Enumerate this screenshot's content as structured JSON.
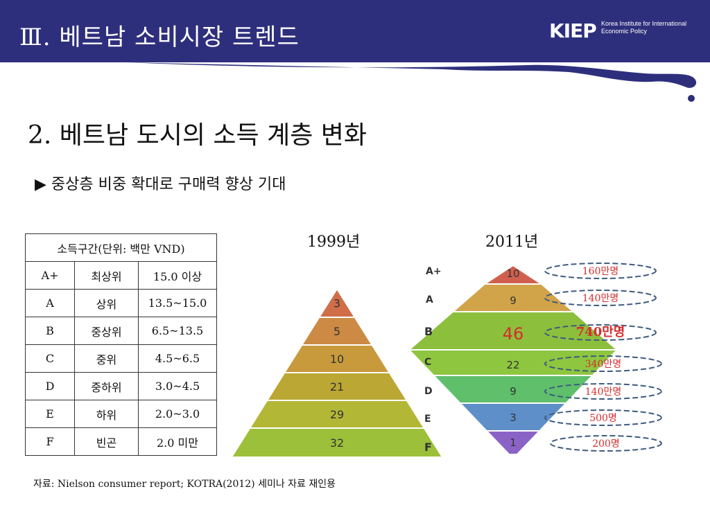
{
  "header": {
    "title": "Ⅲ.  베트남 소비시장 트렌드",
    "logo_mark": "KIEP",
    "logo_line1": "Korea Institute for International",
    "logo_line2": "Economic Policy"
  },
  "section_title": "2. 베트남 도시의 소득 계층 변화",
  "bullet": "▶ 중상층 비중 확대로 구매력 향상 기대",
  "table": {
    "header": "소득구간(단위: 백만 VND)",
    "rows": [
      [
        "A+",
        "최상위",
        "15.0 이상"
      ],
      [
        "A",
        "상위",
        "13.5~15.0"
      ],
      [
        "B",
        "중상위",
        "6.5~13.5"
      ],
      [
        "C",
        "중위",
        "4.5~6.5"
      ],
      [
        "D",
        "중하위",
        "3.0~4.5"
      ],
      [
        "E",
        "하위",
        "2.0~3.0"
      ],
      [
        "F",
        "빈곤",
        "2.0 미만"
      ]
    ]
  },
  "source": "자료: Nielson consumer report; KOTRA(2012) 세미나 자료 재인용",
  "chart_data": [
    {
      "type": "bar",
      "title": "1999년",
      "categories": [
        "A+",
        "A",
        "B",
        "C",
        "D",
        "E",
        "F"
      ],
      "values": [
        null,
        3,
        5,
        10,
        21,
        29,
        32
      ],
      "colors": [
        "#c75b4a",
        "#cf6e49",
        "#cc8a44",
        "#c89a3c",
        "#bba733",
        "#b3b736",
        "#9cc03a"
      ]
    },
    {
      "type": "bar",
      "title": "2011년",
      "categories": [
        "A+",
        "A",
        "B",
        "C",
        "D",
        "E",
        "F"
      ],
      "values": [
        10,
        9,
        46,
        22,
        9,
        3,
        1
      ],
      "annotations": [
        "160만명",
        "140만명",
        "740만명",
        "340만명",
        "140만명",
        "500명",
        "200명"
      ],
      "colors": [
        "#d0604d",
        "#d1a44a",
        "#8cbf3c",
        "#8ec63f",
        "#5fbf6b",
        "#5e8fc8",
        "#8b63c7"
      ]
    }
  ]
}
